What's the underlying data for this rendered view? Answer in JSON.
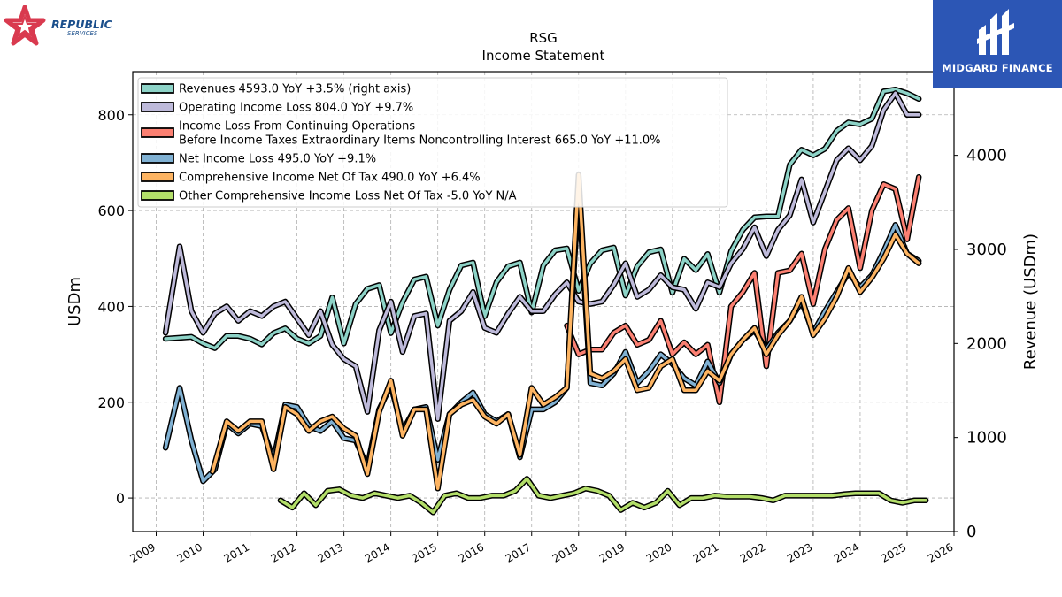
{
  "logos": {
    "left_line1": "REPUBLIC",
    "left_line2": "SERVICES",
    "right": "MIDGARD FINANCE"
  },
  "chart_data": {
    "type": "line",
    "title": "RSG",
    "subtitle": "Income Statement",
    "ylabel": "USDm",
    "y2label": "Revenue (USDm)",
    "xlim": [
      2008.5,
      2026.0
    ],
    "ylim": [
      -70,
      890
    ],
    "y2lim": [
      0,
      4890
    ],
    "x_ticks": [
      "2009",
      "2010",
      "2011",
      "2012",
      "2013",
      "2014",
      "2015",
      "2016",
      "2017",
      "2018",
      "2019",
      "2020",
      "2021",
      "2022",
      "2023",
      "2024",
      "2025",
      "2026"
    ],
    "y_ticks": [
      "0",
      "200",
      "400",
      "600",
      "800"
    ],
    "y2_ticks": [
      "0",
      "1000",
      "2000",
      "3000",
      "4000"
    ],
    "grid": true,
    "legend_position": "top-left",
    "series": [
      {
        "name": "Revenues  4593.0 YoY +3.5% (right axis)",
        "color": "#8dd3c7",
        "axis": "right",
        "x": [
          2009.2,
          2009.5,
          2009.75,
          2010.0,
          2010.25,
          2010.5,
          2010.75,
          2011.0,
          2011.25,
          2011.5,
          2011.75,
          2012.0,
          2012.25,
          2012.5,
          2012.75,
          2013.0,
          2013.25,
          2013.5,
          2013.75,
          2014.0,
          2014.25,
          2014.5,
          2014.75,
          2015.0,
          2015.25,
          2015.5,
          2015.75,
          2016.0,
          2016.25,
          2016.5,
          2016.75,
          2017.0,
          2017.25,
          2017.5,
          2017.75,
          2018.0,
          2018.25,
          2018.5,
          2018.75,
          2019.0,
          2019.25,
          2019.5,
          2019.75,
          2020.0,
          2020.25,
          2020.5,
          2020.75,
          2021.0,
          2021.25,
          2021.5,
          2021.75,
          2022.0,
          2022.25,
          2022.5,
          2022.75,
          2023.0,
          2023.25,
          2023.5,
          2023.75,
          2024.0,
          2024.25,
          2024.5,
          2024.75,
          2025.0,
          2025.25
        ],
        "y": [
          2050,
          2060,
          2070,
          2000,
          1950,
          2080,
          2080,
          2050,
          1990,
          2110,
          2160,
          2050,
          2000,
          2080,
          2490,
          2000,
          2420,
          2580,
          2620,
          2110,
          2440,
          2680,
          2710,
          2190,
          2570,
          2830,
          2860,
          2290,
          2650,
          2820,
          2860,
          2330,
          2830,
          2990,
          3010,
          2560,
          2850,
          2990,
          3020,
          2510,
          2820,
          2970,
          3000,
          2540,
          2900,
          2780,
          2950,
          2540,
          2980,
          3210,
          3340,
          3350,
          3350,
          3900,
          4060,
          4000,
          4070,
          4260,
          4350,
          4330,
          4390,
          4680,
          4700,
          4660,
          4600
        ]
      },
      {
        "name": "Operating Income Loss  804.0 YoY +9.7%",
        "color": "#bebada",
        "axis": "left",
        "x": [
          2009.2,
          2009.5,
          2009.75,
          2010.0,
          2010.25,
          2010.5,
          2010.75,
          2011.0,
          2011.25,
          2011.5,
          2011.75,
          2012.0,
          2012.25,
          2012.5,
          2012.75,
          2013.0,
          2013.25,
          2013.5,
          2013.75,
          2014.0,
          2014.25,
          2014.5,
          2014.75,
          2015.0,
          2015.25,
          2015.5,
          2015.75,
          2016.0,
          2016.25,
          2016.5,
          2016.75,
          2017.0,
          2017.25,
          2017.5,
          2017.75,
          2018.0,
          2018.25,
          2018.5,
          2018.75,
          2019.0,
          2019.25,
          2019.5,
          2019.75,
          2020.0,
          2020.25,
          2020.5,
          2020.75,
          2021.0,
          2021.25,
          2021.5,
          2021.75,
          2022.0,
          2022.25,
          2022.5,
          2022.75,
          2023.0,
          2023.25,
          2023.5,
          2023.75,
          2024.0,
          2024.25,
          2024.5,
          2024.75,
          2025.0,
          2025.25
        ],
        "y": [
          345,
          525,
          390,
          345,
          385,
          400,
          370,
          390,
          380,
          400,
          410,
          375,
          340,
          390,
          320,
          290,
          275,
          180,
          350,
          410,
          305,
          380,
          385,
          165,
          370,
          390,
          430,
          355,
          345,
          385,
          420,
          390,
          390,
          425,
          450,
          410,
          405,
          410,
          445,
          490,
          420,
          435,
          465,
          440,
          435,
          395,
          450,
          440,
          490,
          520,
          565,
          505,
          560,
          590,
          665,
          575,
          640,
          705,
          730,
          705,
          735,
          810,
          845,
          800,
          800
        ]
      },
      {
        "name": "Income Loss From Continuing Operations\nBefore Income Taxes Extraordinary Items Noncontrolling Interest  665.0 YoY +11.0%",
        "color": "#fb8072",
        "axis": "left",
        "x": [
          2017.75,
          2018.0,
          2018.25,
          2018.5,
          2018.75,
          2019.0,
          2019.25,
          2019.5,
          2019.75,
          2020.0,
          2020.25,
          2020.5,
          2020.75,
          2021.0,
          2021.25,
          2021.5,
          2021.75,
          2022.0,
          2022.25,
          2022.5,
          2022.75,
          2023.0,
          2023.25,
          2023.5,
          2023.75,
          2024.0,
          2024.25,
          2024.5,
          2024.75,
          2025.0,
          2025.25
        ],
        "y": [
          360,
          300,
          310,
          310,
          345,
          360,
          320,
          330,
          370,
          300,
          325,
          300,
          320,
          200,
          400,
          430,
          470,
          275,
          470,
          475,
          510,
          405,
          520,
          580,
          605,
          480,
          600,
          655,
          645,
          540,
          670
        ]
      },
      {
        "name": "Net Income Loss  495.0 YoY +9.1%",
        "color": "#80b1d3",
        "axis": "left",
        "x": [
          2009.2,
          2009.5,
          2009.75,
          2010.0,
          2010.25,
          2010.5,
          2010.75,
          2011.0,
          2011.25,
          2011.5,
          2011.75,
          2012.0,
          2012.25,
          2012.5,
          2012.75,
          2013.0,
          2013.25,
          2013.5,
          2013.75,
          2014.0,
          2014.25,
          2014.5,
          2014.75,
          2015.0,
          2015.25,
          2015.5,
          2015.75,
          2016.0,
          2016.25,
          2016.5,
          2016.75,
          2017.0,
          2017.25,
          2017.5,
          2017.75,
          2018.0,
          2018.25,
          2018.5,
          2018.75,
          2019.0,
          2019.25,
          2019.5,
          2019.75,
          2020.0,
          2020.25,
          2020.5,
          2020.75,
          2021.0,
          2021.25,
          2021.5,
          2021.75,
          2022.0,
          2022.25,
          2022.5,
          2022.75,
          2023.0,
          2023.25,
          2023.5,
          2023.75,
          2024.0,
          2024.25,
          2024.5,
          2024.75,
          2025.0,
          2025.25
        ],
        "y": [
          105,
          230,
          120,
          35,
          60,
          155,
          135,
          155,
          150,
          80,
          195,
          190,
          150,
          140,
          160,
          125,
          120,
          65,
          185,
          235,
          140,
          185,
          190,
          80,
          175,
          200,
          220,
          175,
          160,
          175,
          85,
          185,
          185,
          200,
          230,
          640,
          240,
          235,
          260,
          305,
          240,
          265,
          300,
          280,
          250,
          235,
          285,
          240,
          300,
          330,
          350,
          310,
          345,
          370,
          410,
          345,
          390,
          430,
          470,
          440,
          465,
          515,
          570,
          510,
          495
        ]
      },
      {
        "name": "Comprehensive Income Net Of Tax  490.0 YoY +6.4%",
        "color": "#fdb462",
        "axis": "left",
        "x": [
          2010.2,
          2010.5,
          2010.75,
          2011.0,
          2011.25,
          2011.5,
          2011.75,
          2012.0,
          2012.25,
          2012.5,
          2012.75,
          2013.0,
          2013.25,
          2013.5,
          2013.75,
          2014.0,
          2014.25,
          2014.5,
          2014.75,
          2015.0,
          2015.25,
          2015.5,
          2015.75,
          2016.0,
          2016.25,
          2016.5,
          2016.75,
          2017.0,
          2017.25,
          2017.5,
          2017.75,
          2018.0,
          2018.25,
          2018.5,
          2018.75,
          2019.0,
          2019.25,
          2019.5,
          2019.75,
          2020.0,
          2020.25,
          2020.5,
          2020.75,
          2021.0,
          2021.25,
          2021.5,
          2021.75,
          2022.0,
          2022.25,
          2022.5,
          2022.75,
          2023.0,
          2023.25,
          2023.5,
          2023.75,
          2024.0,
          2024.25,
          2024.5,
          2024.75,
          2025.0,
          2025.25
        ],
        "y": [
          55,
          160,
          140,
          160,
          160,
          60,
          190,
          175,
          140,
          160,
          170,
          145,
          130,
          50,
          180,
          245,
          130,
          185,
          185,
          20,
          175,
          195,
          205,
          170,
          155,
          175,
          90,
          230,
          195,
          210,
          230,
          675,
          260,
          250,
          265,
          290,
          225,
          230,
          275,
          290,
          225,
          225,
          265,
          245,
          300,
          330,
          355,
          300,
          340,
          370,
          420,
          340,
          375,
          420,
          480,
          430,
          460,
          500,
          550,
          510,
          490
        ]
      },
      {
        "name": "Other Comprehensive Income Loss Net Of Tax  -5.0 YoY N/A",
        "color": "#b3de69",
        "axis": "left",
        "x": [
          2011.65,
          2011.9,
          2012.15,
          2012.4,
          2012.65,
          2012.9,
          2013.15,
          2013.4,
          2013.65,
          2013.9,
          2014.15,
          2014.4,
          2014.65,
          2014.9,
          2015.15,
          2015.4,
          2015.65,
          2015.9,
          2016.15,
          2016.4,
          2016.65,
          2016.9,
          2017.15,
          2017.4,
          2017.65,
          2017.9,
          2018.15,
          2018.4,
          2018.65,
          2018.9,
          2019.15,
          2019.4,
          2019.65,
          2019.9,
          2020.15,
          2020.4,
          2020.65,
          2020.9,
          2021.15,
          2021.4,
          2021.65,
          2021.9,
          2022.15,
          2022.4,
          2022.65,
          2022.9,
          2023.15,
          2023.4,
          2023.65,
          2023.9,
          2024.15,
          2024.4,
          2024.65,
          2024.9,
          2025.15,
          2025.4
        ],
        "y": [
          -5,
          -20,
          10,
          -15,
          15,
          18,
          5,
          0,
          10,
          5,
          0,
          5,
          -10,
          -30,
          5,
          10,
          0,
          0,
          5,
          5,
          15,
          40,
          5,
          0,
          5,
          10,
          20,
          15,
          5,
          -25,
          -10,
          -20,
          -10,
          15,
          -15,
          0,
          0,
          5,
          3,
          3,
          3,
          0,
          -5,
          5,
          5,
          5,
          5,
          5,
          8,
          10,
          10,
          10,
          -5,
          -10,
          -5,
          -5
        ]
      }
    ]
  }
}
